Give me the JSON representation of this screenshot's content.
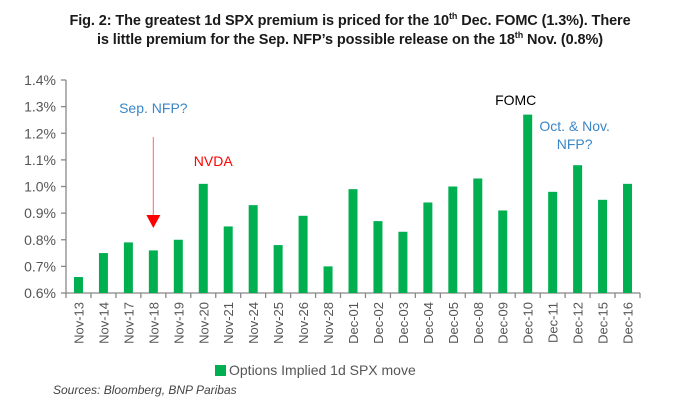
{
  "title_parts": {
    "line1_a": "Fig. 2: The greatest 1d SPX premium is priced for the 10",
    "line1_sup": "th",
    "line1_b": " Dec. FOMC (1.3%). There",
    "line2_a": "is little premium for the Sep. NFP’s possible release on the 18",
    "line2_sup": "th",
    "line2_b": " Nov. (0.8%)"
  },
  "colors": {
    "bar": "#00b050",
    "axis": "#888888",
    "tick_text": "#555555",
    "annotation_blue": "#3a86c8",
    "annotation_red": "#ff0000",
    "annotation_black": "#000000",
    "arrow": "#ff0000"
  },
  "chart_data": {
    "type": "bar",
    "title": "Fig. 2: The greatest 1d SPX premium is priced for the 10th Dec. FOMC (1.3%). There is little premium for the Sep. NFP's possible release on the 18th Nov. (0.8%)",
    "xlabel": "",
    "ylabel": "",
    "ylim": [
      0.6,
      1.4
    ],
    "yticks": [
      0.6,
      0.7,
      0.8,
      0.9,
      1.0,
      1.1,
      1.2,
      1.3,
      1.4
    ],
    "ytick_labels": [
      "0.6%",
      "0.7%",
      "0.8%",
      "0.9%",
      "1.0%",
      "1.1%",
      "1.2%",
      "1.3%",
      "1.4%"
    ],
    "grid": false,
    "legend_position": "bottom",
    "categories": [
      "Nov-13",
      "Nov-14",
      "Nov-17",
      "Nov-18",
      "Nov-19",
      "Nov-20",
      "Nov-21",
      "Nov-24",
      "Nov-25",
      "Nov-26",
      "Nov-28",
      "Dec-01",
      "Dec-02",
      "Dec-03",
      "Dec-04",
      "Dec-05",
      "Dec-08",
      "Dec-09",
      "Dec-10",
      "Dec-11",
      "Dec-12",
      "Dec-15",
      "Dec-16"
    ],
    "series": [
      {
        "name": "Options Implied 1d SPX move",
        "values": [
          0.66,
          0.75,
          0.79,
          0.76,
          0.8,
          1.01,
          0.85,
          0.93,
          0.78,
          0.89,
          0.7,
          0.99,
          0.87,
          0.83,
          0.94,
          1.0,
          1.03,
          0.91,
          1.27,
          0.98,
          1.08,
          0.95,
          1.01
        ]
      }
    ],
    "annotations": [
      {
        "text": "Sep. NFP?",
        "color": "blue",
        "target": "Nov-18",
        "arrow": true
      },
      {
        "text": "NVDA",
        "color": "red",
        "target": "Nov-20"
      },
      {
        "text": "FOMC",
        "color": "black",
        "target": "Dec-10"
      },
      {
        "text": "Oct. & Nov.",
        "color": "blue",
        "target": "Dec-11"
      },
      {
        "text": "NFP?",
        "color": "blue",
        "target": "Dec-11"
      }
    ]
  },
  "legend": {
    "label": "Options Implied 1d SPX move"
  },
  "source": "Sources: Bloomberg, BNP Paribas"
}
